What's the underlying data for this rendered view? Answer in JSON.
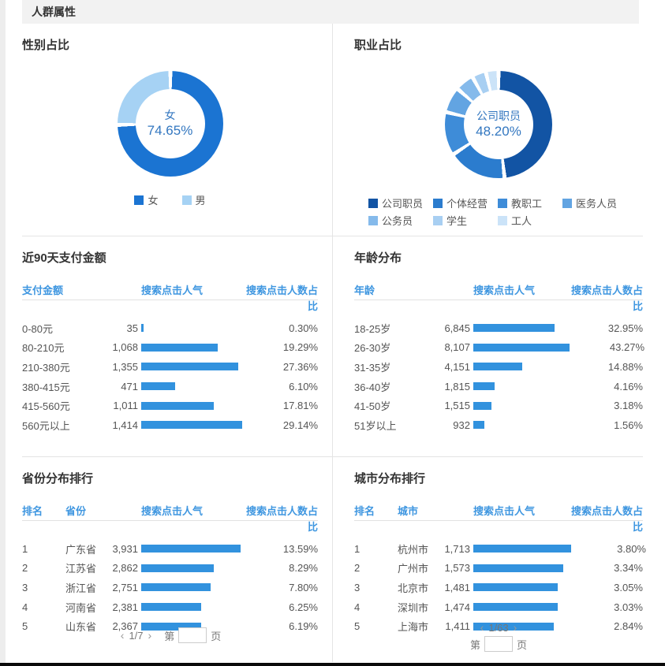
{
  "header": {
    "title": "人群属性"
  },
  "colors": {
    "bar": "#3292DE",
    "table_header": "#3E96E0",
    "donut_center_text": "#3377C0",
    "band_bg": "#F2F2F2",
    "divider": "#E4E4E4",
    "bottom_bar": "#0A0A0A"
  },
  "gender_panel": {
    "title": "性别占比",
    "center_label": "女",
    "center_value": "74.65%",
    "colors": [
      "#1B74D2",
      "#A6D2F4"
    ],
    "slices": [
      {
        "label": "女",
        "value": 74.65
      },
      {
        "label": "男",
        "value": 25.35
      }
    ]
  },
  "occupation_panel": {
    "title": "职业占比",
    "center_label": "公司职员",
    "center_value": "48.20%",
    "colors": [
      "#1254A4",
      "#2B7CCE",
      "#3E8CD8",
      "#62A4E2",
      "#85BAEB",
      "#A8CFF2",
      "#CBE3F8"
    ],
    "slices": [
      {
        "label": "公司职员",
        "value": 48.2
      },
      {
        "label": "个体经营",
        "value": 17.5
      },
      {
        "label": "教职工",
        "value": 13.0
      },
      {
        "label": "医务人员",
        "value": 7.7
      },
      {
        "label": "公务员",
        "value": 5.6
      },
      {
        "label": "学生",
        "value": 4.2
      },
      {
        "label": "工人",
        "value": 3.8
      }
    ]
  },
  "payment_panel": {
    "title": "近90天支付金额",
    "headers": [
      "支付金额",
      "搜索点击人气",
      "搜索点击人数占比"
    ],
    "rows": [
      [
        "0-80元",
        "35",
        "0.30%"
      ],
      [
        "80-210元",
        "1,068",
        "19.29%"
      ],
      [
        "210-380元",
        "1,355",
        "27.36%"
      ],
      [
        "380-415元",
        "471",
        "6.10%"
      ],
      [
        "415-560元",
        "1,011",
        "17.81%"
      ],
      [
        "560元以上",
        "1,414",
        "29.14%"
      ]
    ]
  },
  "age_panel": {
    "title": "年龄分布",
    "headers": [
      "年龄",
      "搜索点击人气",
      "搜索点击人数占比"
    ],
    "rows": [
      [
        "18-25岁",
        "6,845",
        "32.95%"
      ],
      [
        "26-30岁",
        "8,107",
        "43.27%"
      ],
      [
        "31-35岁",
        "4,151",
        "14.88%"
      ],
      [
        "36-40岁",
        "1,815",
        "4.16%"
      ],
      [
        "41-50岁",
        "1,515",
        "3.18%"
      ],
      [
        "51岁以上",
        "932",
        "1.56%"
      ]
    ]
  },
  "province_panel": {
    "title": "省份分布排行",
    "headers": [
      "排名",
      "省份",
      "搜索点击人气",
      "搜索点击人数占比"
    ],
    "rows": [
      [
        "1",
        "广东省",
        "3,931",
        "13.59%"
      ],
      [
        "2",
        "江苏省",
        "2,862",
        "8.29%"
      ],
      [
        "3",
        "浙江省",
        "2,751",
        "7.80%"
      ],
      [
        "4",
        "河南省",
        "2,381",
        "6.25%"
      ],
      [
        "5",
        "山东省",
        "2,367",
        "6.19%"
      ]
    ],
    "pagination": {
      "prev": "‹",
      "current": "1/7",
      "next": "›",
      "jump_prefix": "第",
      "jump_suffix": "页",
      "jump_value": ""
    }
  },
  "city_panel": {
    "title": "城市分布排行",
    "headers": [
      "排名",
      "城市",
      "搜索点击人气",
      "搜索点击人数占比"
    ],
    "rows": [
      [
        "1",
        "杭州市",
        "1,713",
        "3.80%"
      ],
      [
        "2",
        "广州市",
        "1,573",
        "3.34%"
      ],
      [
        "3",
        "北京市",
        "1,481",
        "3.05%"
      ],
      [
        "4",
        "深圳市",
        "1,474",
        "3.03%"
      ],
      [
        "5",
        "上海市",
        "1,411",
        "2.84%"
      ]
    ],
    "pagination": {
      "prev": "‹",
      "current": "1/63",
      "next": "›",
      "jump_prefix": "第",
      "jump_suffix": "页",
      "jump_value": ""
    }
  },
  "chart_data": [
    {
      "type": "pie",
      "title": "性别占比",
      "labels": [
        "女",
        "男"
      ],
      "values": [
        74.65,
        25.35
      ],
      "unit": "%",
      "legend_position": "bottom",
      "center_label": "女 74.65%"
    },
    {
      "type": "pie",
      "title": "职业占比",
      "labels": [
        "公司职员",
        "个体经营",
        "教职工",
        "医务人员",
        "公务员",
        "学生",
        "工人"
      ],
      "values": [
        48.2,
        17.5,
        13.0,
        7.7,
        5.6,
        4.2,
        3.8
      ],
      "unit": "%",
      "legend_position": "bottom",
      "center_label": "公司职员 48.20%"
    },
    {
      "type": "bar",
      "title": "近90天支付金额",
      "orientation": "horizontal",
      "categories": [
        "0-80元",
        "80-210元",
        "210-380元",
        "380-415元",
        "415-560元",
        "560元以上"
      ],
      "series": [
        {
          "name": "搜索点击人气",
          "values": [
            35,
            1068,
            1355,
            471,
            1011,
            1414
          ]
        },
        {
          "name": "搜索点击人数占比",
          "values": [
            0.3,
            19.29,
            27.36,
            6.1,
            17.81,
            29.14
          ]
        }
      ]
    },
    {
      "type": "bar",
      "title": "年龄分布",
      "orientation": "horizontal",
      "categories": [
        "18-25岁",
        "26-30岁",
        "31-35岁",
        "36-40岁",
        "41-50岁",
        "51岁以上"
      ],
      "series": [
        {
          "name": "搜索点击人气",
          "values": [
            6845,
            8107,
            4151,
            1815,
            1515,
            932
          ]
        },
        {
          "name": "搜索点击人数占比",
          "values": [
            32.95,
            43.27,
            14.88,
            4.16,
            3.18,
            1.56
          ]
        }
      ]
    },
    {
      "type": "bar",
      "title": "省份分布排行",
      "orientation": "horizontal",
      "categories": [
        "广东省",
        "江苏省",
        "浙江省",
        "河南省",
        "山东省"
      ],
      "series": [
        {
          "name": "搜索点击人气",
          "values": [
            3931,
            2862,
            2751,
            2381,
            2367
          ]
        },
        {
          "name": "搜索点击人数占比",
          "values": [
            13.59,
            8.29,
            7.8,
            6.25,
            6.19
          ]
        }
      ]
    },
    {
      "type": "bar",
      "title": "城市分布排行",
      "orientation": "horizontal",
      "categories": [
        "杭州市",
        "广州市",
        "北京市",
        "深圳市",
        "上海市"
      ],
      "series": [
        {
          "name": "搜索点击人气",
          "values": [
            1713,
            1573,
            1481,
            1474,
            1411
          ]
        },
        {
          "name": "搜索点击人数占比",
          "values": [
            3.8,
            3.34,
            3.05,
            3.03,
            2.84
          ]
        }
      ]
    }
  ]
}
